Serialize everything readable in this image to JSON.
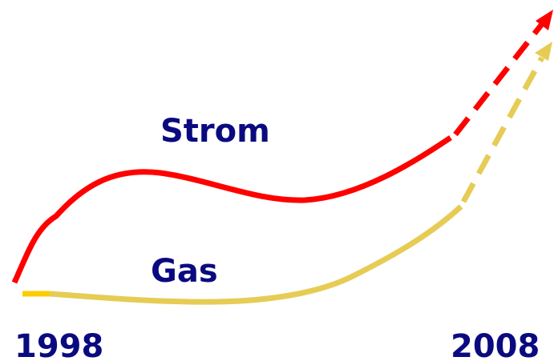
{
  "labels": {
    "strom": "Strom",
    "gas": "Gas"
  },
  "axis": {
    "start": "1998",
    "end": "2008"
  }
}
